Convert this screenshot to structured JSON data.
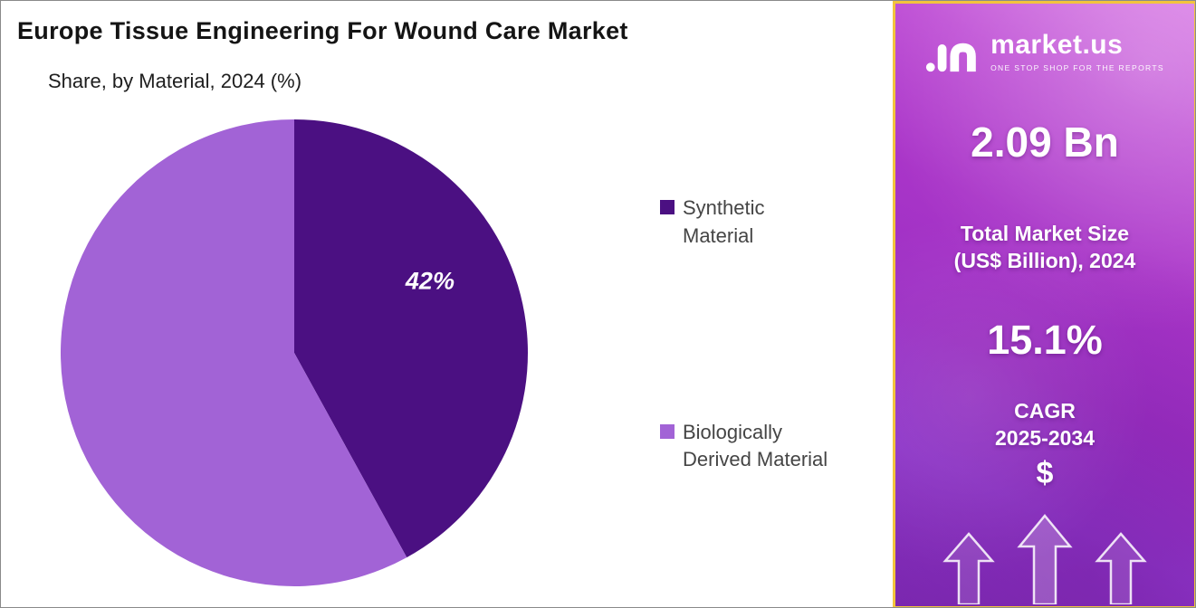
{
  "page": {
    "title": "Europe Tissue Engineering For Wound Care Market",
    "subtitle": "Share, by Material, 2024 (%)"
  },
  "chart_data": {
    "type": "pie",
    "title": "Europe Tissue Engineering For Wound Care Market",
    "subtitle": "Share, by Material, 2024 (%)",
    "labels": [
      "Synthetic Material",
      "Biologically Derived Material"
    ],
    "values": [
      42,
      58
    ],
    "colors": [
      "#4B1082",
      "#A263D6"
    ],
    "slice_labels": [
      "42%",
      ""
    ],
    "start_angle": "top",
    "direction": "clockwise",
    "legend_position": "right"
  },
  "sidebar": {
    "logo_name": "market.us",
    "logo_tagline": "ONE STOP SHOP FOR THE REPORTS",
    "market_size_value": "2.09 Bn",
    "market_size_label_line1": "Total Market Size",
    "market_size_label_line2": "(US$ Billion), 2024",
    "cagr_value": "15.1%",
    "cagr_label_line1": "CAGR",
    "cagr_label_line2": "2025-2034",
    "dollar_icon": "$",
    "accent_border_color": "#F2C43D",
    "gradient_colors": [
      "#D778E4",
      "#A935C8",
      "#7D2AB4"
    ]
  }
}
